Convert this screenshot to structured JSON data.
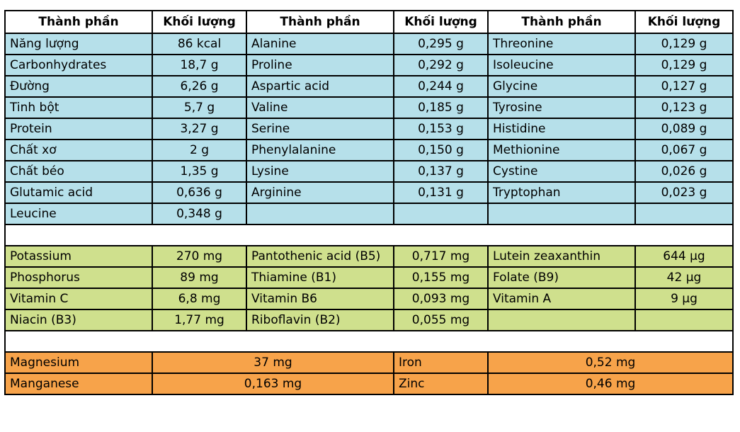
{
  "header": {
    "col_name": "Thành phần",
    "col_mass": "Khối lượng"
  },
  "blue_rows": [
    [
      [
        "Năng lượng",
        "86 kcal"
      ],
      [
        "Alanine",
        "0,295 g"
      ],
      [
        "Threonine",
        "0,129 g"
      ]
    ],
    [
      [
        "Carbonhydrates",
        "18,7 g"
      ],
      [
        "Proline",
        "0,292 g"
      ],
      [
        "Isoleucine",
        "0,129 g"
      ]
    ],
    [
      [
        "Đường",
        "6,26 g"
      ],
      [
        "Aspartic acid",
        "0,244 g"
      ],
      [
        "Glycine",
        "0,127 g"
      ]
    ],
    [
      [
        "Tinh bột",
        "5,7 g"
      ],
      [
        "Valine",
        "0,185 g"
      ],
      [
        "Tyrosine",
        "0,123 g"
      ]
    ],
    [
      [
        "Protein",
        "3,27 g"
      ],
      [
        "Serine",
        "0,153 g"
      ],
      [
        "Histidine",
        "0,089 g"
      ]
    ],
    [
      [
        "Chất xơ",
        "2 g"
      ],
      [
        "Phenylalanine",
        "0,150 g"
      ],
      [
        "Methionine",
        "0,067 g"
      ]
    ],
    [
      [
        "Chất béo",
        "1,35 g"
      ],
      [
        "Lysine",
        "0,137 g"
      ],
      [
        "Cystine",
        "0,026 g"
      ]
    ],
    [
      [
        "Glutamic acid",
        "0,636 g"
      ],
      [
        "Arginine",
        "0,131 g"
      ],
      [
        "Tryptophan",
        "0,023 g"
      ]
    ],
    [
      [
        "Leucine",
        "0,348 g"
      ],
      [
        "",
        ""
      ],
      [
        "",
        ""
      ]
    ]
  ],
  "green_rows": [
    [
      [
        "Potassium",
        "270 mg"
      ],
      [
        "Pantothenic acid (B5)",
        "0,717 mg"
      ],
      [
        "Lutein zeaxanthin",
        "644 µg"
      ]
    ],
    [
      [
        "Phosphorus",
        "89 mg"
      ],
      [
        "Thiamine (B1)",
        "0,155 mg"
      ],
      [
        "Folate (B9)",
        "42 µg"
      ]
    ],
    [
      [
        "Vitamin C",
        "6,8 mg"
      ],
      [
        "Vitamin B6",
        "0,093 mg"
      ],
      [
        "Vitamin A",
        "9 µg"
      ]
    ],
    [
      [
        "Niacin (B3)",
        "1,77 mg"
      ],
      [
        "Riboflavin (B2)",
        "0,055 mg"
      ],
      [
        "",
        ""
      ]
    ]
  ],
  "orange_rows": [
    [
      [
        "Magnesium",
        "37 mg"
      ],
      [
        "Iron",
        "0,52 mg"
      ]
    ],
    [
      [
        "Manganese",
        "0,163 mg"
      ],
      [
        "Zinc",
        "0,46 mg"
      ]
    ]
  ],
  "colors": {
    "blue": "#b6e0ea",
    "green": "#cfe08d",
    "orange": "#f7a34a"
  }
}
